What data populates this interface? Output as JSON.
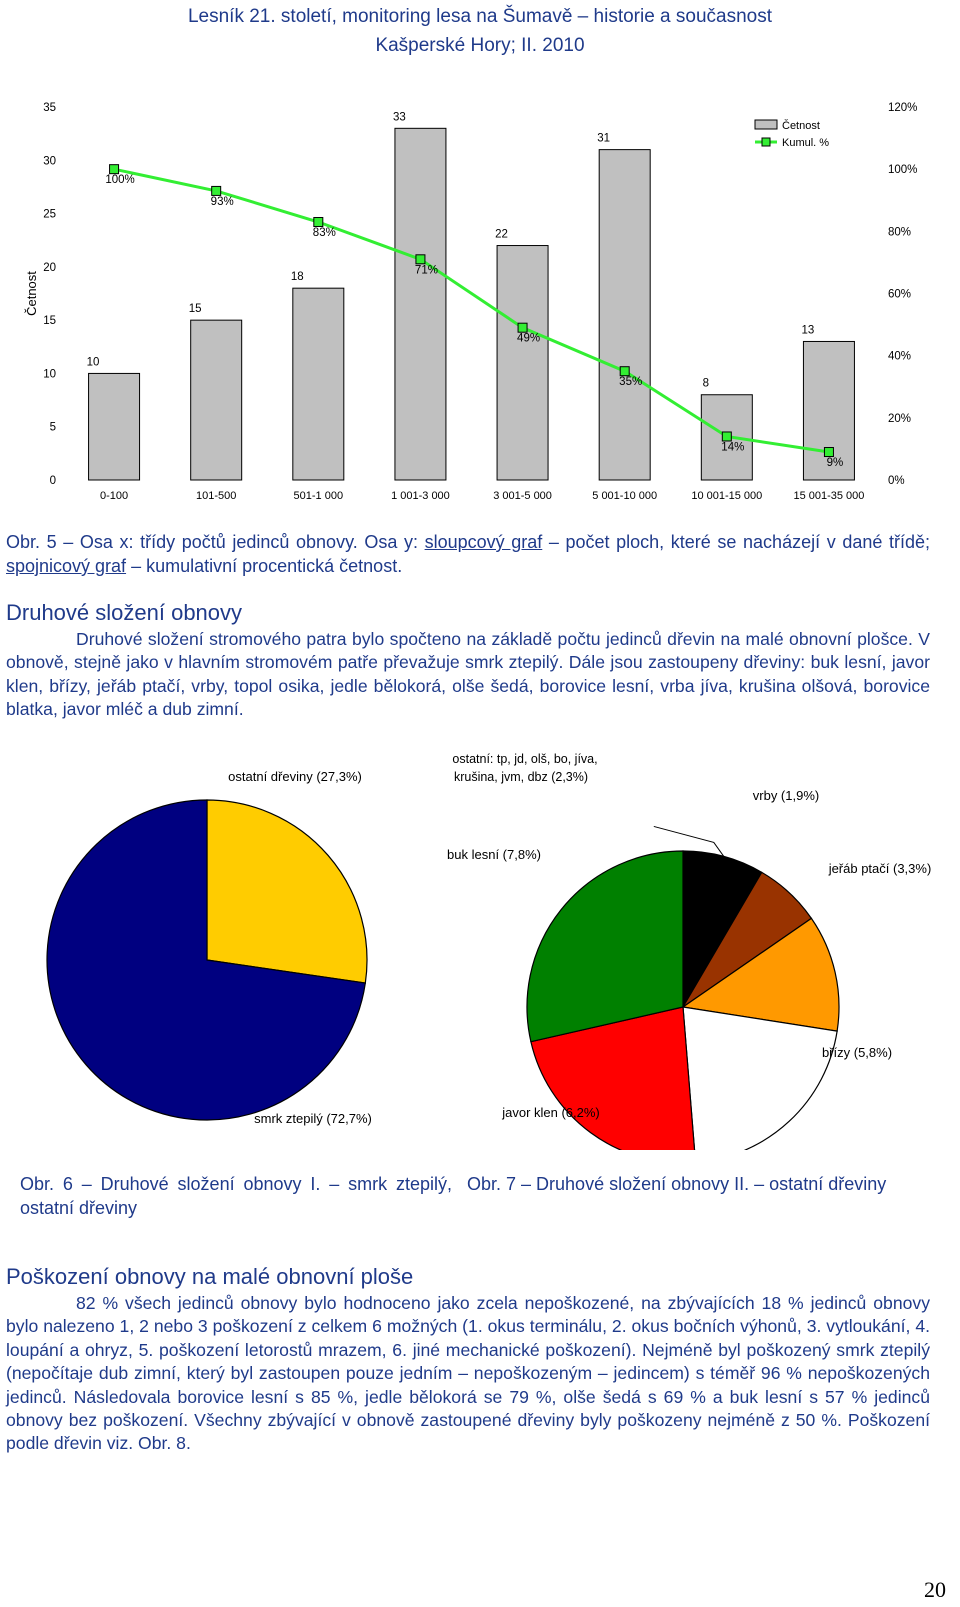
{
  "header": {
    "line1": "Lesník 21. století, monitoring lesa na Šumavě – historie a současnost",
    "line2": "Kašperské Hory; II. 2010"
  },
  "chart_data": [
    {
      "type": "bar",
      "ylabel": "Četnost",
      "ylim": [
        0,
        35
      ],
      "y2lim": [
        0,
        120
      ],
      "yticks": [
        "0",
        "5",
        "10",
        "15",
        "20",
        "25",
        "30",
        "35"
      ],
      "y2ticks": [
        "0%",
        "20%",
        "40%",
        "60%",
        "80%",
        "100%",
        "120%"
      ],
      "categories": [
        "0-100",
        "101-500",
        "501-1 000",
        "1 001-3 000",
        "3 001-5 000",
        "5 001-10 000",
        "10 001-15 000",
        "15 001-35 000"
      ],
      "series": [
        {
          "name": "Četnost",
          "values": [
            10,
            15,
            18,
            33,
            22,
            31,
            8,
            13
          ],
          "labels": [
            "10",
            "15",
            "18",
            "33",
            "22",
            "31",
            "8",
            "13"
          ],
          "color": "#c0c0c0"
        },
        {
          "name": "Kumul. %",
          "values": [
            100,
            93,
            83,
            71,
            49,
            35,
            14,
            9
          ],
          "labels": [
            "100%",
            "93%",
            "83%",
            "71%",
            "49%",
            "35%",
            "14%",
            "9%"
          ],
          "color": "#33ee33"
        }
      ],
      "legend": "top-right"
    },
    {
      "type": "pie",
      "slices": [
        {
          "label": "smrk ztepilý (72,7%)",
          "value": 72.7,
          "color": "#000080"
        },
        {
          "label": "ostatní dřeviny (27,3%)",
          "value": 27.3,
          "color": "#ffcc00"
        }
      ]
    },
    {
      "type": "pie",
      "slices": [
        {
          "label": "ostatní: tp, jd, olš, bo, jíva, krušina, jvm, dbz (2,3%)",
          "value": 2.3,
          "color": "#000000"
        },
        {
          "label": "vrby (1,9%)",
          "value": 1.9,
          "color": "#993300"
        },
        {
          "label": "jeřáb ptačí (3,3%)",
          "value": 3.3,
          "color": "#ff9900"
        },
        {
          "label": "břízy (5,8%)",
          "value": 5.8,
          "color": "#ffffff"
        },
        {
          "label": "javor klen (6,2%)",
          "value": 6.2,
          "color": "#ff0000"
        },
        {
          "label": "buk lesní (7,8%)",
          "value": 7.8,
          "color": "#008000"
        }
      ]
    }
  ],
  "captions": {
    "fig5_a": "Obr. 5 – Osa x: třídy počtů jedinců obnovy. Osa y: ",
    "fig5_b": "sloupcový graf",
    "fig5_c": " – počet ploch, které se nacházejí v dané třídě; ",
    "fig5_d": "spojnicový graf",
    "fig5_e": " – kumulativní procentická četnost.",
    "fig6": "Obr. 6 – Druhové složení obnovy I. – smrk ztepilý, ostatní dřeviny",
    "fig7": "Obr. 7 – Druhové složení obnovy II. – ostatní dřeviny"
  },
  "sections": {
    "s1_title": "Druhové složení obnovy",
    "s1_text": "Druhové složení stromového patra bylo spočteno na základě počtu jedinců dřevin na malé obnovní plošce. V obnově, stejně jako v hlavním stromovém patře převažuje smrk ztepilý. Dále jsou zastoupeny dřeviny: buk lesní, javor klen, břízy, jeřáb ptačí, vrby, topol osika, jedle bělokorá, olše šedá, borovice lesní, vrba jíva, krušina olšová, borovice blatka, javor mléč a dub zimní.",
    "s2_title": "Poškození obnovy na malé obnovní ploše",
    "s2_text": "82 % všech jedinců obnovy bylo hodnoceno jako zcela nepoškozené, na zbývajících 18 % jedinců obnovy bylo nalezeno 1, 2 nebo 3 poškození z celkem 6 možných (1. okus terminálu, 2. okus bočních výhonů, 3. vytloukání, 4. loupání a ohryz, 5. poškození letorostů mrazem, 6. jiné mechanické poškození). Nejméně byl poškozený smrk ztepilý (nepočítaje dub zimní, který byl zastoupen pouze jedním – nepoškozeným – jedincem) s téměř 96 % nepoškozených jedinců. Následovala borovice lesní s 85 %, jedle bělokorá se 79 %, olše šedá s 69 % a buk lesní s 57 % jedinců obnovy bez poškození. Všechny zbývající v obnově zastoupené dřeviny byly poškozeny nejméně z 50 %. Poškození podle dřevin viz. Obr. 8."
  },
  "page_number": "20"
}
